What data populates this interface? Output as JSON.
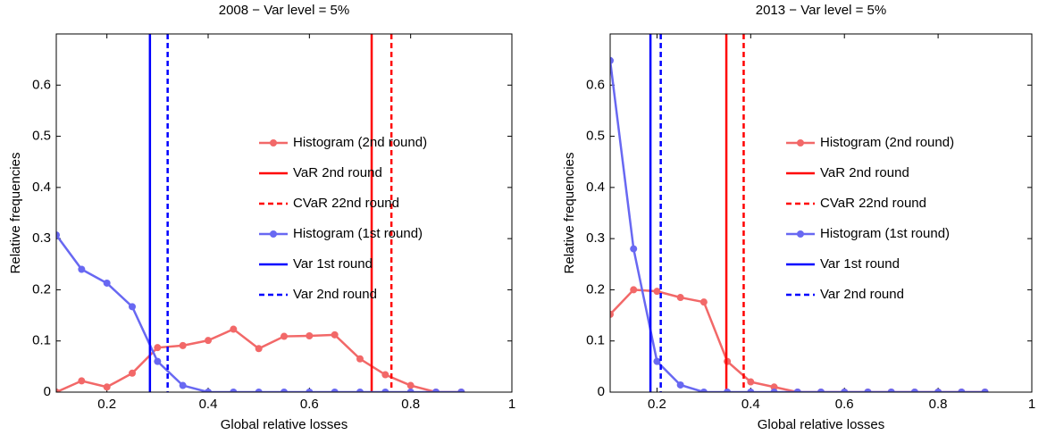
{
  "chart_data": [
    {
      "type": "line",
      "title": "2008 − Var level = 5%",
      "xlabel": "Global relative losses",
      "ylabel": "Relative frequencies",
      "x": [
        0.1,
        0.15,
        0.2,
        0.25,
        0.3,
        0.35,
        0.4,
        0.45,
        0.5,
        0.55,
        0.6,
        0.65,
        0.7,
        0.75,
        0.8,
        0.85,
        0.9
      ],
      "xlim": [
        0.1,
        1
      ],
      "xticks": [
        0.2,
        0.4,
        0.6,
        0.8,
        1
      ],
      "ylim": [
        0,
        0.7
      ],
      "yticks": [
        0,
        0.1,
        0.2,
        0.3,
        0.4,
        0.5,
        0.6
      ],
      "series": [
        {
          "name": "Histogram (2nd round)",
          "color": "#f26868",
          "values": [
            0,
            0.022,
            0.01,
            0.037,
            0.087,
            0.091,
            0.101,
            0.123,
            0.085,
            0.109,
            0.11,
            0.112,
            0.065,
            0.034,
            0.013,
            0,
            0
          ]
        },
        {
          "name": "VaR 2nd round",
          "color": "#ff0000",
          "vline": 0.723,
          "style": "solid"
        },
        {
          "name": "CVaR 22nd round",
          "color": "#ff0000",
          "vline": 0.762,
          "style": "dashed"
        },
        {
          "name": "Histogram (1st round)",
          "color": "#6868f2",
          "values": [
            0.307,
            0.24,
            0.213,
            0.167,
            0.06,
            0.013,
            0,
            0,
            0,
            0,
            0,
            0,
            0,
            0,
            0,
            0,
            0
          ]
        },
        {
          "name": "Var 1st round",
          "color": "#0000ff",
          "vline": 0.285,
          "style": "solid"
        },
        {
          "name": "Var 2nd round",
          "color": "#0000ff",
          "vline": 0.32,
          "style": "dashed"
        }
      ]
    },
    {
      "type": "line",
      "title": "2013 − Var level = 5%",
      "xlabel": "Global relative losses",
      "ylabel": "Relative frequencies",
      "x": [
        0.1,
        0.15,
        0.2,
        0.25,
        0.3,
        0.35,
        0.4,
        0.45,
        0.5,
        0.55,
        0.6,
        0.65,
        0.7,
        0.75,
        0.8,
        0.85,
        0.9
      ],
      "xlim": [
        0.1,
        1
      ],
      "xticks": [
        0.2,
        0.4,
        0.6,
        0.8,
        1
      ],
      "ylim": [
        0,
        0.7
      ],
      "yticks": [
        0,
        0.1,
        0.2,
        0.3,
        0.4,
        0.5,
        0.6
      ],
      "series": [
        {
          "name": "Histogram (2nd round)",
          "color": "#f26868",
          "values": [
            0.152,
            0.2,
            0.197,
            0.185,
            0.176,
            0.06,
            0.02,
            0.01,
            0,
            0,
            0,
            0,
            0,
            0,
            0,
            0,
            0
          ]
        },
        {
          "name": "VaR 2nd round",
          "color": "#ff0000",
          "vline": 0.348,
          "style": "solid"
        },
        {
          "name": "CVaR 22nd round",
          "color": "#ff0000",
          "vline": 0.385,
          "style": "dashed"
        },
        {
          "name": "Histogram (1st round)",
          "color": "#6868f2",
          "values": [
            0.648,
            0.28,
            0.06,
            0.014,
            0,
            0,
            0,
            0,
            0,
            0,
            0,
            0,
            0,
            0,
            0,
            0,
            0
          ]
        },
        {
          "name": "Var 1st round",
          "color": "#0000ff",
          "vline": 0.186,
          "style": "solid"
        },
        {
          "name": "Var 2nd round",
          "color": "#0000ff",
          "vline": 0.208,
          "style": "dashed"
        }
      ]
    }
  ]
}
